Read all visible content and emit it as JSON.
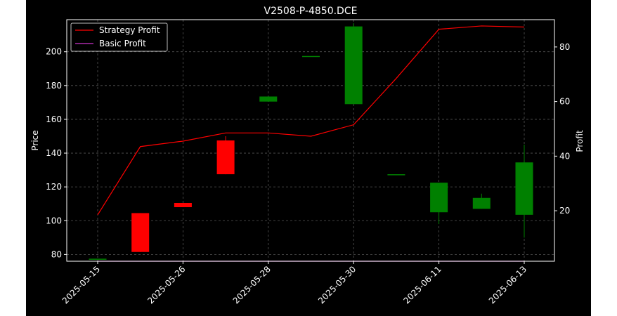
{
  "chart_data": {
    "type": "candlestick",
    "title": "V2508-P-4850.DCE",
    "ylabel_left": "Price",
    "ylabel_right": "Profit",
    "xlabel": "",
    "grid": true,
    "legend_position": "top-left",
    "background": "#000000",
    "colors": {
      "up": "#008000",
      "down": "#ff0000",
      "strategy_profit": "#ff0000",
      "basic_profit": "#cc33cc",
      "text": "#ffffff",
      "grid": "#555555"
    },
    "legend": [
      "Strategy Profit",
      "Basic Profit"
    ],
    "x_tick_labels": [
      "2025-05-15",
      "2025-05-26",
      "2025-05-28",
      "2025-05-30",
      "2025-06-11",
      "2025-06-13"
    ],
    "y_left_ticks": [
      80,
      100,
      120,
      140,
      160,
      180,
      200
    ],
    "y_right_ticks": [
      20,
      40,
      60,
      80
    ],
    "ylim_left": [
      76,
      219
    ],
    "ylim_right": [
      1.5,
      90
    ],
    "candles": [
      {
        "open": 77.5,
        "close": 77.5,
        "high": 77.5,
        "low": 77.5
      },
      {
        "open": 104.5,
        "close": 81.5,
        "high": 104.5,
        "low": 81.5
      },
      {
        "open": 110.5,
        "close": 108,
        "high": 110.5,
        "low": 108
      },
      {
        "open": 147.5,
        "close": 127.5,
        "high": 150,
        "low": 127.5
      },
      {
        "open": 170.5,
        "close": 173.5,
        "high": 173.5,
        "low": 170.5
      },
      {
        "open": 197.5,
        "close": 197.5,
        "high": 197.5,
        "low": 197.5
      },
      {
        "open": 169,
        "close": 215,
        "high": 217,
        "low": 169
      },
      {
        "open": 127.5,
        "close": 127.5,
        "high": 127.5,
        "low": 127.5
      },
      {
        "open": 105,
        "close": 122.5,
        "high": 122.5,
        "low": 98
      },
      {
        "open": 107,
        "close": 113.5,
        "high": 116,
        "low": 107
      },
      {
        "open": 103.5,
        "close": 134.5,
        "high": 145,
        "low": 90
      }
    ],
    "series": [
      {
        "name": "Strategy Profit",
        "values": [
          18.5,
          43.5,
          45.5,
          48.5,
          48.5,
          47.3,
          51.5,
          68.5,
          86.5,
          87.7,
          87.3
        ]
      },
      {
        "name": "Basic Profit",
        "values": [
          1.5,
          1.5,
          1.5,
          1.5,
          1.5,
          1.5,
          1.5,
          1.5,
          1.5,
          1.5,
          1.5
        ]
      }
    ]
  }
}
